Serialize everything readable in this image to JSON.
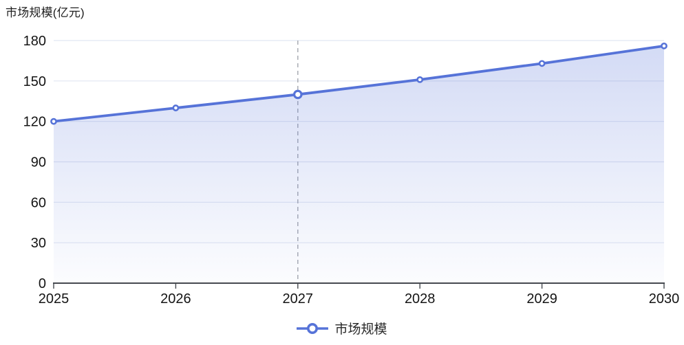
{
  "chart_data": {
    "type": "area",
    "title": "市场规模(亿元)",
    "x": [
      "2025",
      "2026",
      "2027",
      "2028",
      "2029",
      "2030"
    ],
    "series": [
      {
        "name": "市场规模",
        "values": [
          120,
          130,
          140,
          151,
          163,
          176
        ]
      }
    ],
    "ylim": [
      0,
      180
    ],
    "yticks": [
      0,
      30,
      60,
      90,
      120,
      150,
      180
    ],
    "grid": true,
    "legend_position": "bottom",
    "emphasized_x": "2027",
    "annotations": [
      {
        "type": "vline",
        "x": "2027",
        "style": "dashed"
      }
    ]
  },
  "legend": {
    "items": [
      {
        "label": "市场规模",
        "color": "#5673D8"
      }
    ]
  },
  "colors": {
    "line": "#5673D8",
    "marker_fill": "#ffffff",
    "area_top": "rgba(86,115,216,0.26)",
    "area_bottom": "rgba(86,115,216,0.02)",
    "grid": "#E1E6F2",
    "axis": "#45494F",
    "tick_label": "#141414",
    "dashed_line": "#A9ACB3",
    "title": "#1F1F1F"
  }
}
